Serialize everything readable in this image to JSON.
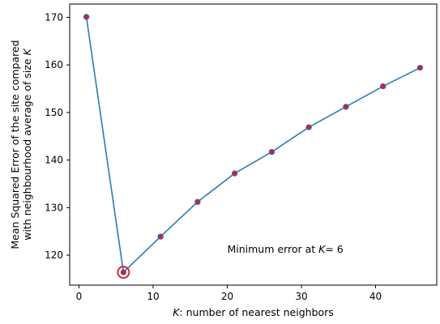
{
  "chart_data": {
    "type": "line",
    "x": [
      1,
      6,
      11,
      16,
      21,
      26,
      31,
      36,
      41,
      46
    ],
    "series": [
      {
        "values": [
          170.1,
          116.4,
          123.9,
          131.2,
          137.2,
          141.7,
          146.9,
          151.2,
          155.5,
          159.4
        ]
      }
    ],
    "xlabel_parts": [
      "K",
      ": number of nearest neighbors"
    ],
    "ylabel_lines": [
      [
        "Mean Squared Error of the site compared",
        ""
      ],
      [
        "with neighbourhood average of size ",
        "K"
      ]
    ],
    "annotation_parts": [
      "Minimum error at ",
      "K",
      "= 6"
    ],
    "annotation_position": {
      "x": 20,
      "y": 120.5
    },
    "highlight": {
      "x": 6,
      "y": 116.4
    },
    "xticks": [
      0,
      10,
      20,
      30,
      40
    ],
    "yticks": [
      120,
      130,
      140,
      150,
      160,
      170
    ],
    "xlim": [
      -1.25,
      48.25
    ],
    "ylim": [
      113.7,
      172.8
    ],
    "grid": false,
    "colors": {
      "line": "#2b7bb9",
      "marker": "#c7233b",
      "highlight_ring": "#d62728",
      "axes": "#000000"
    }
  }
}
